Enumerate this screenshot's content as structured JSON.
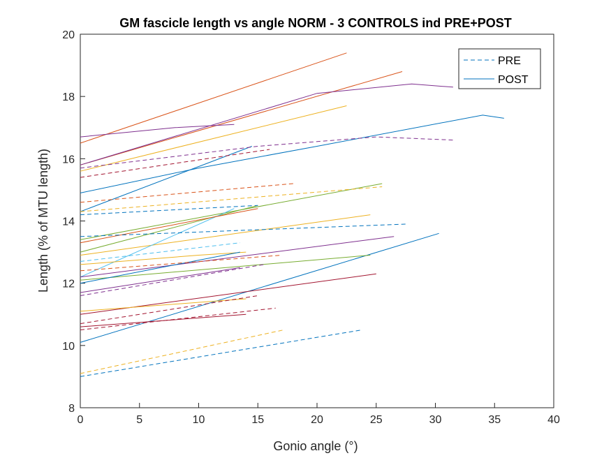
{
  "chart_data": {
    "type": "line",
    "title": "GM fascicle length vs angle NORM - 3 CONTROLS ind PRE+POST",
    "xlabel": "Gonio angle (°)",
    "ylabel": "Length (% of MTU length)",
    "xlim": [
      0,
      40
    ],
    "ylim": [
      8,
      20
    ],
    "xticks": [
      "0",
      "5",
      "10",
      "15",
      "20",
      "25",
      "30",
      "35",
      "40"
    ],
    "yticks": [
      "8",
      "10",
      "12",
      "14",
      "16",
      "18",
      "20"
    ],
    "legend": {
      "position": "top-right",
      "entries": [
        {
          "label": "PRE",
          "style": "dashed",
          "color": "#0072BD"
        },
        {
          "label": "POST",
          "style": "solid",
          "color": "#0072BD"
        }
      ]
    },
    "grid": false,
    "series": [
      {
        "group": "POST",
        "color": "#D95319",
        "x": [
          0,
          22.5
        ],
        "y": [
          16.5,
          19.4
        ]
      },
      {
        "group": "POST",
        "color": "#D95319",
        "x": [
          0,
          27.2
        ],
        "y": [
          15.8,
          18.8
        ]
      },
      {
        "group": "POST",
        "color": "#7E2F8E",
        "x": [
          0,
          20,
          28,
          31.5
        ],
        "y": [
          15.8,
          18.1,
          18.4,
          18.3
        ]
      },
      {
        "group": "POST",
        "color": "#EDB120",
        "x": [
          0,
          22.5
        ],
        "y": [
          15.6,
          17.7
        ]
      },
      {
        "group": "POST",
        "color": "#7E2F8E",
        "x": [
          0,
          8,
          13
        ],
        "y": [
          16.7,
          17.0,
          17.1
        ]
      },
      {
        "group": "POST",
        "color": "#0072BD",
        "x": [
          0,
          10,
          20,
          34,
          35.8
        ],
        "y": [
          14.9,
          15.7,
          16.4,
          17.4,
          17.3
        ]
      },
      {
        "group": "POST",
        "color": "#0072BD",
        "x": [
          0,
          14.5
        ],
        "y": [
          14.3,
          16.4
        ]
      },
      {
        "group": "POST",
        "color": "#77AC30",
        "x": [
          0,
          25.5
        ],
        "y": [
          13.4,
          15.2
        ]
      },
      {
        "group": "POST",
        "color": "#77AC30",
        "x": [
          0,
          15
        ],
        "y": [
          13.0,
          14.5
        ]
      },
      {
        "group": "POST",
        "color": "#EDB120",
        "x": [
          0,
          24.5
        ],
        "y": [
          12.9,
          14.2
        ]
      },
      {
        "group": "POST",
        "color": "#4DBEEE",
        "x": [
          0,
          13
        ],
        "y": [
          12.2,
          14.4
        ]
      },
      {
        "group": "POST",
        "color": "#D95319",
        "x": [
          0,
          15
        ],
        "y": [
          13.3,
          14.4
        ]
      },
      {
        "group": "POST",
        "color": "#7E2F8E",
        "x": [
          0,
          26.5
        ],
        "y": [
          12.2,
          13.5
        ]
      },
      {
        "group": "POST",
        "color": "#EDB120",
        "x": [
          0,
          10,
          14
        ],
        "y": [
          12.6,
          12.9,
          13.0
        ]
      },
      {
        "group": "POST",
        "color": "#0072BD",
        "x": [
          0,
          30.3
        ],
        "y": [
          10.1,
          13.6
        ]
      },
      {
        "group": "POST",
        "color": "#77AC30",
        "x": [
          0,
          24.5
        ],
        "y": [
          12.1,
          12.9
        ]
      },
      {
        "group": "POST",
        "color": "#0072BD",
        "x": [
          0,
          13.5
        ],
        "y": [
          12.0,
          13.0
        ]
      },
      {
        "group": "POST",
        "color": "#A2142F",
        "x": [
          0,
          25
        ],
        "y": [
          11.0,
          12.3
        ]
      },
      {
        "group": "POST",
        "color": "#7E2F8E",
        "x": [
          0,
          13.5
        ],
        "y": [
          11.7,
          12.5
        ]
      },
      {
        "group": "POST",
        "color": "#EDB120",
        "x": [
          0,
          14
        ],
        "y": [
          11.1,
          11.5
        ]
      },
      {
        "group": "POST",
        "color": "#A2142F",
        "x": [
          0,
          14
        ],
        "y": [
          10.6,
          11.0
        ]
      },
      {
        "group": "PRE",
        "color": "#0072BD",
        "x": [
          0,
          23.8
        ],
        "y": [
          9.0,
          10.5
        ]
      },
      {
        "group": "PRE",
        "color": "#EDB120",
        "x": [
          0,
          17.2
        ],
        "y": [
          9.1,
          10.5
        ]
      },
      {
        "group": "PRE",
        "color": "#7E2F8E",
        "x": [
          0,
          15,
          25,
          31.5
        ],
        "y": [
          15.7,
          16.4,
          16.7,
          16.6
        ]
      },
      {
        "group": "PRE",
        "color": "#A2142F",
        "x": [
          0,
          16
        ],
        "y": [
          15.4,
          16.3
        ]
      },
      {
        "group": "PRE",
        "color": "#D95319",
        "x": [
          0,
          18
        ],
        "y": [
          14.6,
          15.2
        ]
      },
      {
        "group": "PRE",
        "color": "#EDB120",
        "x": [
          0,
          25.5
        ],
        "y": [
          14.3,
          15.1
        ]
      },
      {
        "group": "PRE",
        "color": "#0072BD",
        "x": [
          0,
          15
        ],
        "y": [
          14.2,
          14.5
        ]
      },
      {
        "group": "PRE",
        "color": "#0072BD",
        "x": [
          0,
          27.5
        ],
        "y": [
          13.5,
          13.9
        ]
      },
      {
        "group": "PRE",
        "color": "#4DBEEE",
        "x": [
          0,
          13.5
        ],
        "y": [
          12.7,
          13.3
        ]
      },
      {
        "group": "PRE",
        "color": "#D95319",
        "x": [
          0,
          17
        ],
        "y": [
          12.4,
          12.9
        ]
      },
      {
        "group": "PRE",
        "color": "#7E2F8E",
        "x": [
          0,
          15.5
        ],
        "y": [
          11.6,
          12.6
        ]
      },
      {
        "group": "PRE",
        "color": "#A2142F",
        "x": [
          0,
          15
        ],
        "y": [
          10.7,
          11.6
        ]
      },
      {
        "group": "PRE",
        "color": "#A2142F",
        "x": [
          0,
          16.5
        ],
        "y": [
          10.5,
          11.2
        ]
      }
    ]
  }
}
